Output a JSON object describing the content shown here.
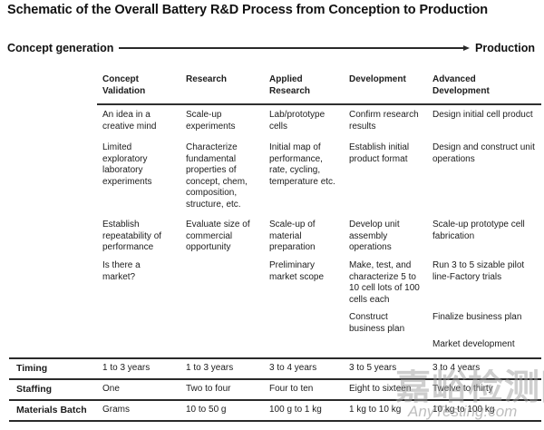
{
  "title": "Schematic of the Overall Battery R&D Process from Conception to Production",
  "flow": {
    "start": "Concept generation",
    "end": "Production"
  },
  "colors": {
    "text": "#1c1c1c",
    "rule": "#2a2a2a",
    "background": "#ffffff",
    "watermark_gray": "#9e9e9e"
  },
  "table": {
    "columns": [
      "Concept Validation",
      "Research",
      "Applied Research",
      "Development",
      "Advanced Development"
    ],
    "body_rows": [
      [
        "An idea in a creative mind",
        "Scale-up experiments",
        "Lab/prototype cells",
        "Confirm research results",
        "Design initial cell product"
      ],
      [
        "Limited exploratory laboratory experiments",
        "Characterize fundamental properties of concept, chem, composition, structure, etc.",
        "Initial map of performance, rate, cycling, temperature etc.",
        "Establish initial product format",
        "Design and construct unit operations"
      ],
      [
        "Establish repeatability of performance",
        "Evaluate size of commercial opportunity",
        "Scale-up of material preparation",
        "Develop unit assembly operations",
        "Scale-up prototype cell fabrication"
      ],
      [
        "Is there a market?",
        "",
        "Preliminary market scope",
        "Make, test, and characterize 5 to 10 cell lots of 100 cells each",
        "Run 3 to 5 sizable pilot line-Factory trials"
      ],
      [
        "",
        "",
        "",
        "Construct business plan",
        "Finalize business plan"
      ],
      [
        "",
        "",
        "",
        "",
        "Market development"
      ]
    ],
    "summary_rows": [
      {
        "label": "Timing",
        "values": [
          "1 to 3 years",
          "1 to 3 years",
          "3 to 4 years",
          "3 to 5 years",
          "3 to 4 years"
        ]
      },
      {
        "label": "Staffing",
        "values": [
          "One",
          "Two to four",
          "Four to ten",
          "Eight to sixteen",
          "Twelve to thirty"
        ]
      },
      {
        "label": "Materials Batch",
        "values": [
          "Grams",
          "10 to 50 g",
          "100 g to 1 kg",
          "1 kg to 10 kg",
          "10 kg to 100 kg"
        ]
      }
    ]
  },
  "watermark": {
    "cn": "嘉峪检测网",
    "en": "AnyTesting.com"
  }
}
